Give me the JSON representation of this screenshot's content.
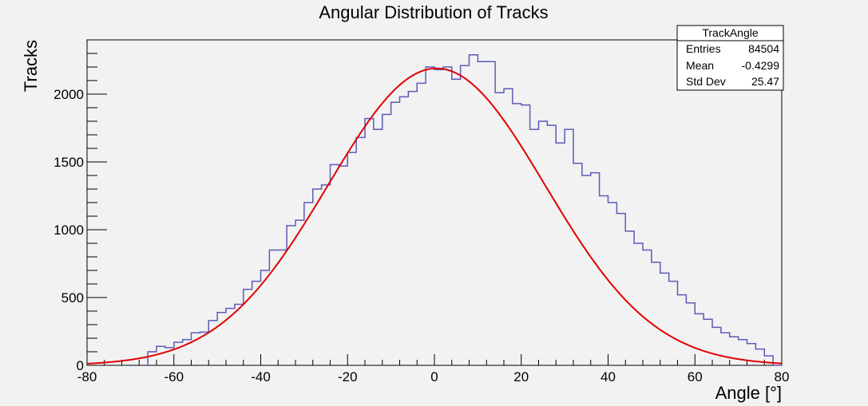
{
  "chart_data": {
    "type": "histogram",
    "title": "Angular Distribution of Tracks",
    "xlabel": "Angle [°]",
    "ylabel": "Tracks",
    "xlim": [
      -80,
      80
    ],
    "ylim": [
      0,
      2400
    ],
    "x_ticks": [
      -80,
      -60,
      -40,
      -20,
      0,
      20,
      40,
      60,
      80
    ],
    "y_ticks": [
      0,
      500,
      1000,
      1500,
      2000
    ],
    "grid": false,
    "legend": "none",
    "colors": {
      "histogram": "#5b5bb8",
      "fit": "#e00000",
      "frame": "#000000",
      "background": "#f2f2f2"
    },
    "bin_width": 2,
    "bin_edges_start": -66,
    "bin_counts": [
      100,
      140,
      130,
      170,
      190,
      240,
      245,
      330,
      390,
      420,
      450,
      560,
      620,
      700,
      850,
      850,
      1030,
      1070,
      1200,
      1300,
      1330,
      1480,
      1470,
      1570,
      1680,
      1820,
      1740,
      1850,
      1940,
      1980,
      2020,
      2080,
      2200,
      2180,
      2200,
      2110,
      2210,
      2290,
      2240,
      2240,
      2010,
      2040,
      1930,
      1920,
      1740,
      1800,
      1770,
      1640,
      1740,
      1490,
      1400,
      1420,
      1250,
      1200,
      1120,
      990,
      900,
      850,
      760,
      680,
      620,
      520,
      460,
      380,
      340,
      280,
      240,
      210,
      190,
      160,
      120,
      70,
      0
    ],
    "fit": {
      "function": "gaus",
      "mean": 0.5,
      "sigma": 25.0,
      "amplitude": 2190,
      "range": [
        -80,
        80
      ]
    },
    "stats_box": {
      "title": "TrackAngle",
      "rows": [
        {
          "label": "Entries",
          "value": "84504"
        },
        {
          "label": "Mean",
          "value": "-0.4299"
        },
        {
          "label": "Std Dev",
          "value": "25.47"
        }
      ]
    }
  }
}
